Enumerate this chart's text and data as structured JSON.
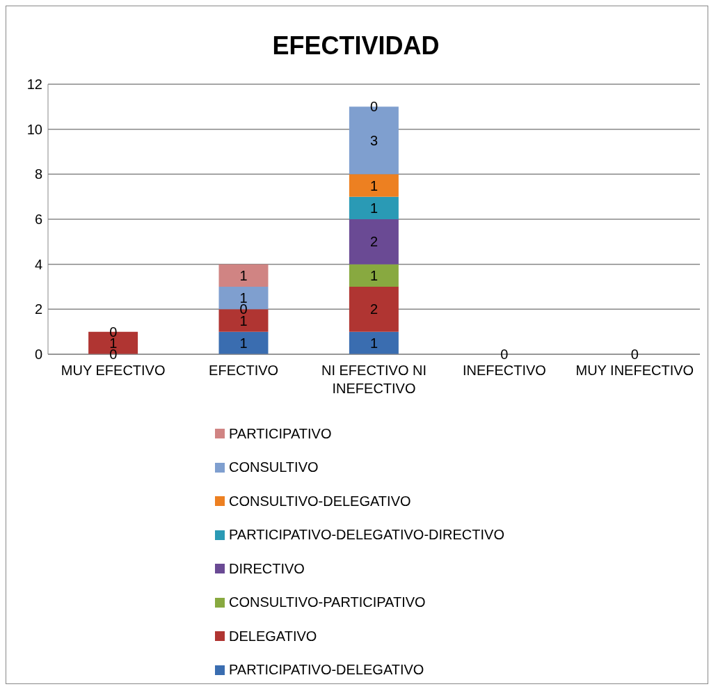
{
  "chart_data": {
    "type": "bar",
    "title": "EFECTIVIDAD",
    "stacked": true,
    "categories": [
      "MUY EFECTIVO",
      "EFECTIVO",
      "NI EFECTIVO NI INEFECTIVO",
      "INEFECTIVO",
      "MUY INEFECTIVO"
    ],
    "series": [
      {
        "name": "PARTICIPATIVO-DELEGATIVO",
        "color": "#3a6db0",
        "values": [
          0,
          1,
          1,
          0,
          0
        ],
        "value_labels": [
          "0",
          "1",
          "1",
          "0",
          "0"
        ]
      },
      {
        "name": "DELEGATIVO",
        "color": "#b03532",
        "values": [
          1,
          1,
          2,
          0,
          0
        ],
        "value_labels": [
          "1",
          "1",
          "2",
          null,
          null
        ]
      },
      {
        "name": "CONSULTIVO-PARTICIPATIVO",
        "color": "#88a940",
        "values": [
          0,
          0,
          1,
          0,
          0
        ],
        "value_labels": [
          "0",
          "0",
          "1",
          null,
          null
        ]
      },
      {
        "name": "DIRECTIVO",
        "color": "#6a4a94",
        "values": [
          0,
          0,
          2,
          0,
          0
        ],
        "value_labels": [
          null,
          null,
          "2",
          null,
          null
        ]
      },
      {
        "name": "PARTICIPATIVO-DELEGATIVO-DIRECTIVO",
        "color": "#2a9ab5",
        "values": [
          0,
          0,
          1,
          0,
          0
        ],
        "value_labels": [
          null,
          null,
          "1",
          null,
          null
        ]
      },
      {
        "name": "CONSULTIVO-DELEGATIVO",
        "color": "#ed8021",
        "values": [
          0,
          0,
          1,
          0,
          0
        ],
        "value_labels": [
          null,
          null,
          "1",
          null,
          null
        ]
      },
      {
        "name": "CONSULTIVO",
        "color": "#7f9fcf",
        "values": [
          0,
          1,
          3,
          0,
          0
        ],
        "value_labels": [
          null,
          "1",
          "3",
          null,
          null
        ]
      },
      {
        "name": "PARTICIPATIVO",
        "color": "#d08483",
        "values": [
          0,
          1,
          0,
          0,
          0
        ],
        "value_labels": [
          null,
          "1",
          "0",
          null,
          null
        ]
      }
    ],
    "ylim": [
      0,
      12
    ],
    "yticks": [
      0,
      2,
      4,
      6,
      8,
      10,
      12
    ],
    "grid": "y",
    "legend": "bottom"
  }
}
